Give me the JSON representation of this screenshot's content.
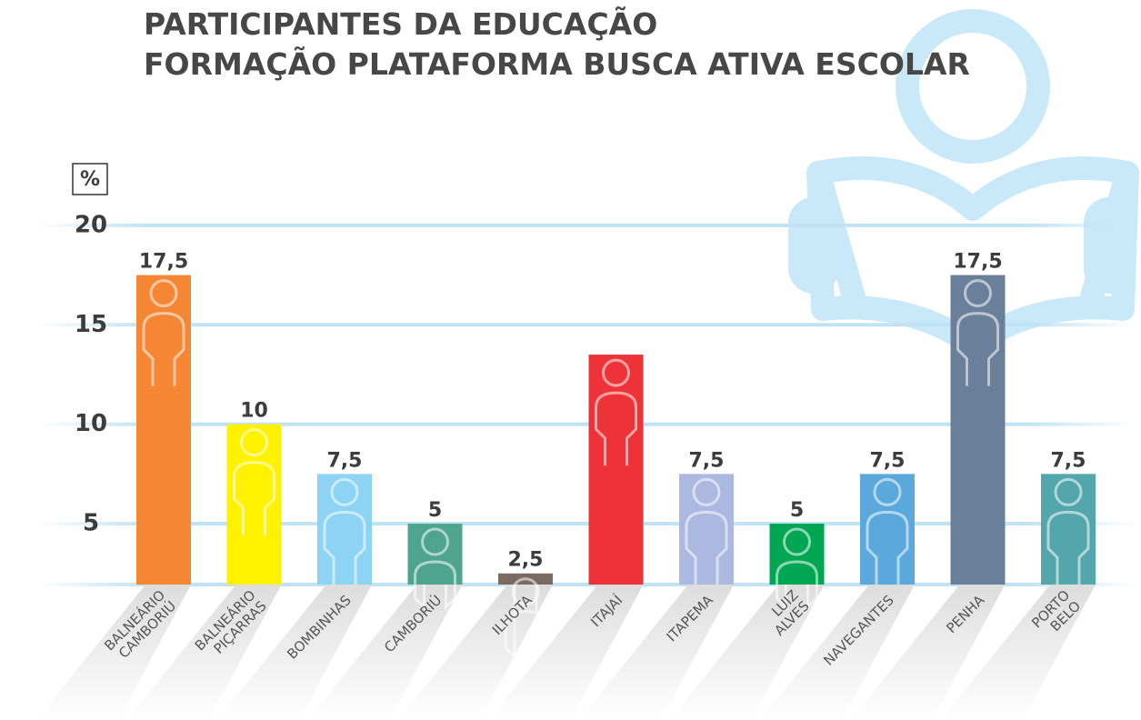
{
  "chart_data": {
    "type": "bar",
    "title": [
      "PARTICIPANTES DA EDUCAÇÃO",
      "FORMAÇÃO PLATAFORMA BUSCA ATIVA ESCOLAR"
    ],
    "y_label": "%",
    "categories": [
      "BALNEÁRIO CAMBORIÚ",
      "BALNEÁRIO PIÇARRAS",
      "BOMBINHAS",
      "CAMBORIÚ",
      "ILHOTA",
      "ITAJAÍ",
      "ITAPEMA",
      "LUIZ ALVES",
      "NAVEGANTES",
      "PENHA",
      "PORTO BELO"
    ],
    "values": [
      17.5,
      10,
      7.5,
      5,
      2.5,
      13.5,
      7.5,
      5,
      7.5,
      17.5,
      7.5
    ],
    "value_labels": [
      "17,5",
      "10",
      "7,5",
      "5",
      "2,5",
      null,
      "7,5",
      "5",
      "7,5",
      "17,5",
      "7,5"
    ],
    "colors": [
      "#f58634",
      "#fff200",
      "#8dd3f4",
      "#4fa48e",
      "#7a6a62",
      "#ee3338",
      "#abb8e0",
      "#00a651",
      "#5ba8dc",
      "#6a7f9a",
      "#53a6ac"
    ],
    "ylim": [
      1.94,
      21
    ],
    "yticks": [
      5,
      10,
      15,
      20
    ],
    "grid": true
  }
}
